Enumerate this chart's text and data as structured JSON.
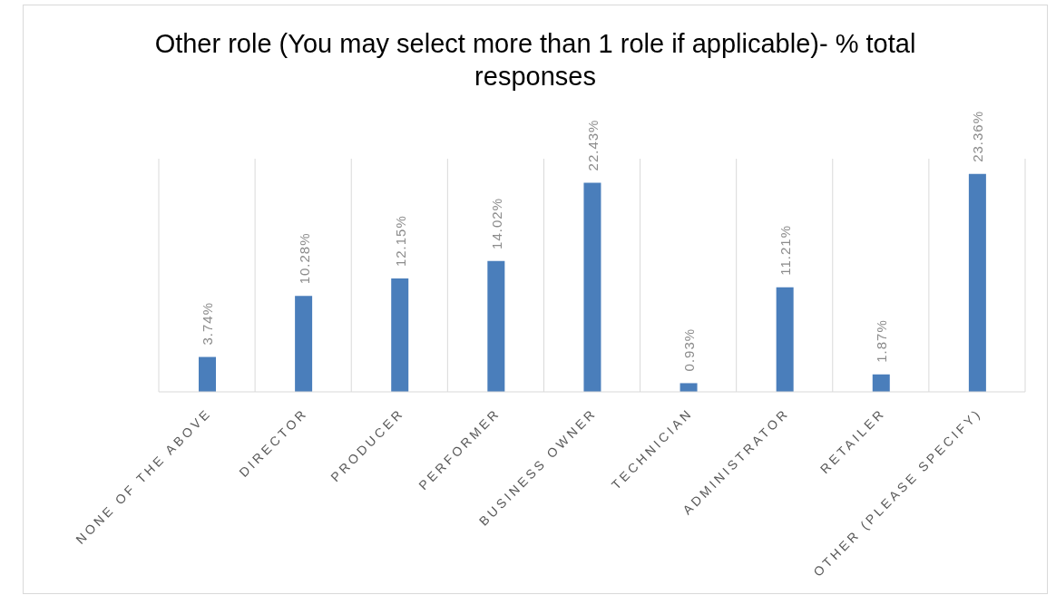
{
  "chart_data": {
    "type": "bar",
    "title": "Other role (You may select more than 1 role if applicable)- % total responses",
    "categories": [
      "NONE OF THE ABOVE",
      "DIRECTOR",
      "PRODUCER",
      "PERFORMER",
      "BUSINESS OWNER",
      "TECHNICIAN",
      "ADMINISTRATOR",
      "RETAILER",
      "OTHER (PLEASE SPECIFY)"
    ],
    "values": [
      3.74,
      10.28,
      12.15,
      14.02,
      22.43,
      0.93,
      11.21,
      1.87,
      23.36
    ],
    "value_labels": [
      "3.74%",
      "10.28%",
      "12.15%",
      "14.02%",
      "22.43%",
      "0.93%",
      "11.21%",
      "1.87%",
      "23.36%"
    ],
    "color": "#4a7ebb",
    "grid": "x",
    "tick_labels": "x"
  }
}
